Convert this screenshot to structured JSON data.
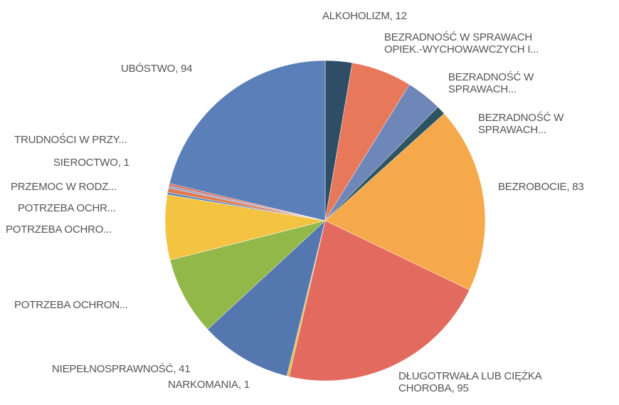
{
  "chart_data": {
    "type": "pie",
    "categories": [
      "ALKOHOLIZM, 12",
      "BEZRADNOŚĆ W SPRAWACH\nOPIEK.-WYCHOWAWCZYCH I...",
      "BEZRADNOŚĆ W\nSPRAWACH...",
      "BEZRADNOŚĆ W\nSPRAWACH...",
      "BEZROBOCIE, 83",
      "DŁUGOTRWAŁA LUB CIĘŻKA\nCHOROBA, 95",
      "NARKOMANIA, 1",
      "NIEPEŁNOSPRAWNOŚĆ, 41",
      "POTRZEBA OCHRON...",
      "POTRZEBA OCHRO...",
      "POTRZEBA OCHR...",
      "PRZEMOC W RODZ...",
      "SIEROCTWO, 1",
      "TRUDNOŚCI W PRZY...",
      "UBÓSTWO, 94"
    ],
    "values": [
      12,
      27,
      16,
      4,
      83,
      95,
      1,
      41,
      35,
      29,
      1,
      2,
      1,
      1,
      94
    ],
    "colors": [
      "#2f4d66",
      "#e8785a",
      "#6f86b8",
      "#2d5560",
      "#f5a94a",
      "#e36a5f",
      "#d9c040",
      "#5577b0",
      "#93b84a",
      "#f5c342",
      "#4a7fc0",
      "#e07a50",
      "#8ea0c8",
      "#e0604c",
      "#5b7fb8"
    ]
  }
}
